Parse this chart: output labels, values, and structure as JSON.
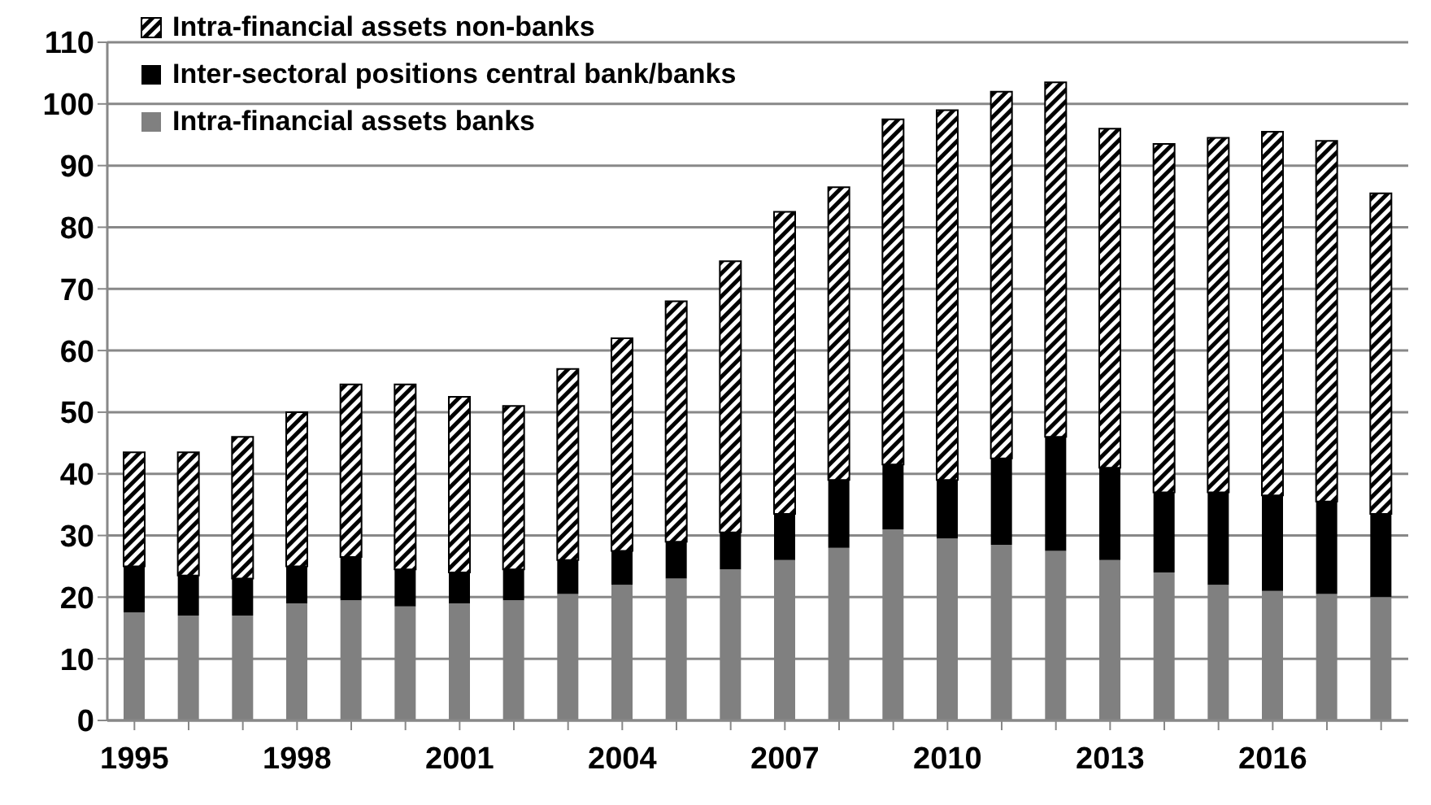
{
  "chart_data": {
    "type": "bar",
    "stacked": true,
    "categories": [
      "1995",
      null,
      null,
      "1998",
      null,
      null,
      "2001",
      null,
      null,
      "2004",
      null,
      null,
      "2007",
      null,
      null,
      "2010",
      null,
      null,
      "2013",
      null,
      null,
      "2016",
      null,
      null
    ],
    "series": [
      {
        "name": "Intra-financial assets banks",
        "color": "#808080",
        "values": [
          17.5,
          17,
          17,
          19,
          19.5,
          18.5,
          19,
          19.5,
          20.5,
          22,
          23,
          24.5,
          26,
          28,
          31,
          29.5,
          28.5,
          27.5,
          26,
          24,
          22,
          21,
          20.5,
          20
        ]
      },
      {
        "name": "Inter-sectoral positions central bank/banks",
        "color": "#000000",
        "values": [
          7.5,
          6.5,
          6,
          6,
          7,
          6,
          5,
          5,
          5.5,
          5.5,
          6,
          6,
          7.5,
          11,
          10.5,
          9.5,
          14,
          18.5,
          15,
          13,
          15,
          15.5,
          15,
          13.5
        ]
      },
      {
        "name": "Intra-financial assets non-banks",
        "color": "#000000",
        "values": [
          18.5,
          20,
          23,
          25,
          28,
          30,
          28.5,
          26.5,
          31,
          34.5,
          39,
          44,
          49,
          47.5,
          56,
          60,
          59.5,
          57.5,
          55,
          56.5,
          57.5,
          59,
          58.5,
          52
        ]
      }
    ],
    "ylim": [
      0,
      110
    ],
    "yticks": [
      0,
      10,
      20,
      30,
      40,
      50,
      60,
      70,
      80,
      90,
      100,
      110
    ],
    "grid": "y",
    "legend": "top left"
  }
}
